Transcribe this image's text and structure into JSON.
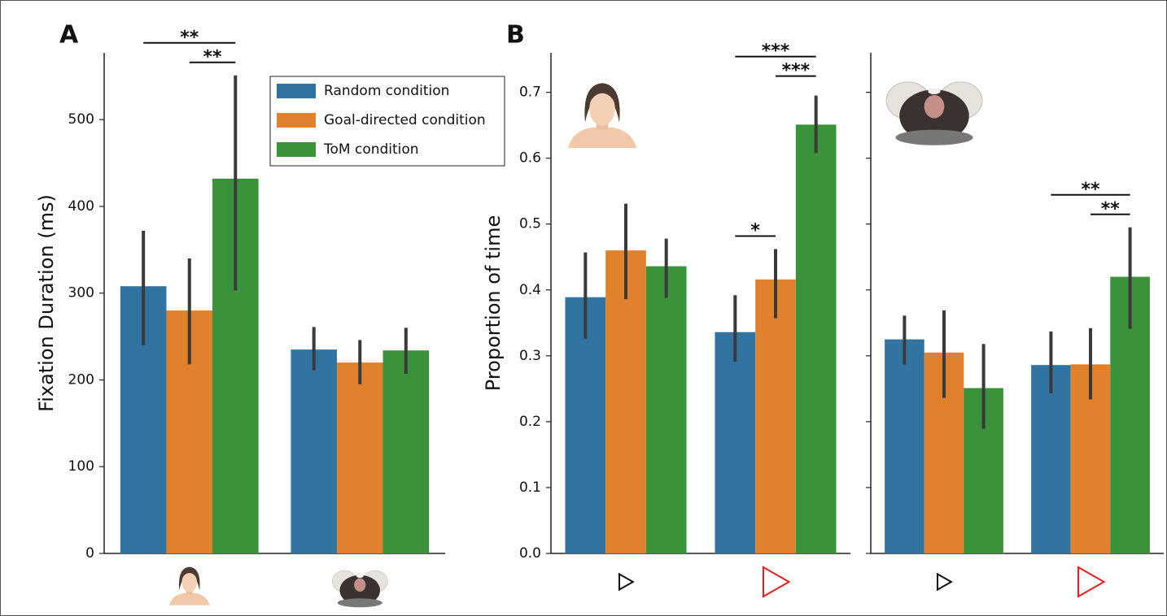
{
  "chart_data": [
    {
      "type": "bar",
      "panel_label": "A",
      "ylabel": "Fixation Duration (ms)",
      "categories": [
        null,
        null
      ],
      "series": [
        {
          "name": "Random condition",
          "color": "#3274a1",
          "values": [
            308,
            235
          ],
          "ci_low": [
            240,
            211
          ],
          "ci_high": [
            372,
            261
          ]
        },
        {
          "name": "Goal-directed condition",
          "color": "#e1812c",
          "values": [
            280,
            220
          ],
          "ci_low": [
            218,
            195
          ],
          "ci_high": [
            340,
            246
          ]
        },
        {
          "name": "ToM condition",
          "color": "#3a923a",
          "values": [
            432,
            234
          ],
          "ci_low": [
            303,
            207
          ],
          "ci_high": [
            551,
            260
          ]
        }
      ],
      "ylim": [
        0,
        577
      ],
      "yticks": [
        0,
        100,
        200,
        300,
        400,
        500
      ],
      "legend": "upper right",
      "annotations": [
        {
          "text": "**",
          "category": 0,
          "from": 1,
          "to": 2
        },
        {
          "text": "**",
          "category": 0,
          "from": 0,
          "to": 2
        }
      ]
    },
    {
      "type": "bar",
      "panel_label": "B",
      "ylabel": "Proportion of time",
      "categories": [
        null,
        null
      ],
      "series": [
        {
          "color": "#3274a1",
          "values": [
            0.389,
            0.336
          ],
          "ci_low": [
            0.326,
            0.291
          ],
          "ci_high": [
            0.457,
            0.392
          ]
        },
        {
          "color": "#e1812c",
          "values": [
            0.46,
            0.416
          ],
          "ci_low": [
            0.386,
            0.357
          ],
          "ci_high": [
            0.531,
            0.462
          ]
        },
        {
          "color": "#3a923a",
          "values": [
            0.436,
            0.651
          ],
          "ci_low": [
            0.388,
            0.608
          ],
          "ci_high": [
            0.478,
            0.695
          ]
        }
      ],
      "ylim": [
        0,
        0.76
      ],
      "yticks": [
        {
          "value": 0,
          "label": "0.0"
        },
        0.1,
        0.2,
        0.3,
        0.4,
        0.5,
        0.6,
        0.7
      ],
      "annotations": [
        {
          "text": "*",
          "category": 1,
          "from": 0,
          "to": 1
        },
        {
          "text": "***",
          "category": 1,
          "from": 1,
          "to": 2
        },
        {
          "text": "***",
          "category": 1,
          "from": 0,
          "to": 2
        }
      ]
    },
    {
      "type": "bar",
      "categories": [
        null,
        null
      ],
      "series": [
        {
          "color": "#3274a1",
          "values": [
            0.325,
            0.286
          ],
          "ci_low": [
            0.287,
            0.243
          ],
          "ci_high": [
            0.361,
            0.337
          ]
        },
        {
          "color": "#e1812c",
          "values": [
            0.305,
            0.287
          ],
          "ci_low": [
            0.236,
            0.234
          ],
          "ci_high": [
            0.369,
            0.342
          ]
        },
        {
          "color": "#3a923a",
          "values": [
            0.251,
            0.42
          ],
          "ci_low": [
            0.189,
            0.341
          ],
          "ci_high": [
            0.318,
            0.495
          ]
        }
      ],
      "ylim": [
        0,
        0.76
      ],
      "yticks": [
        0,
        0.1,
        0.2,
        0.3,
        0.4,
        0.5,
        0.6,
        0.7
      ],
      "ytick_labels": false,
      "annotations": [
        {
          "text": "**",
          "category": 1,
          "from": 1,
          "to": 2
        },
        {
          "text": "**",
          "category": 1,
          "from": 0,
          "to": 2
        }
      ]
    }
  ]
}
